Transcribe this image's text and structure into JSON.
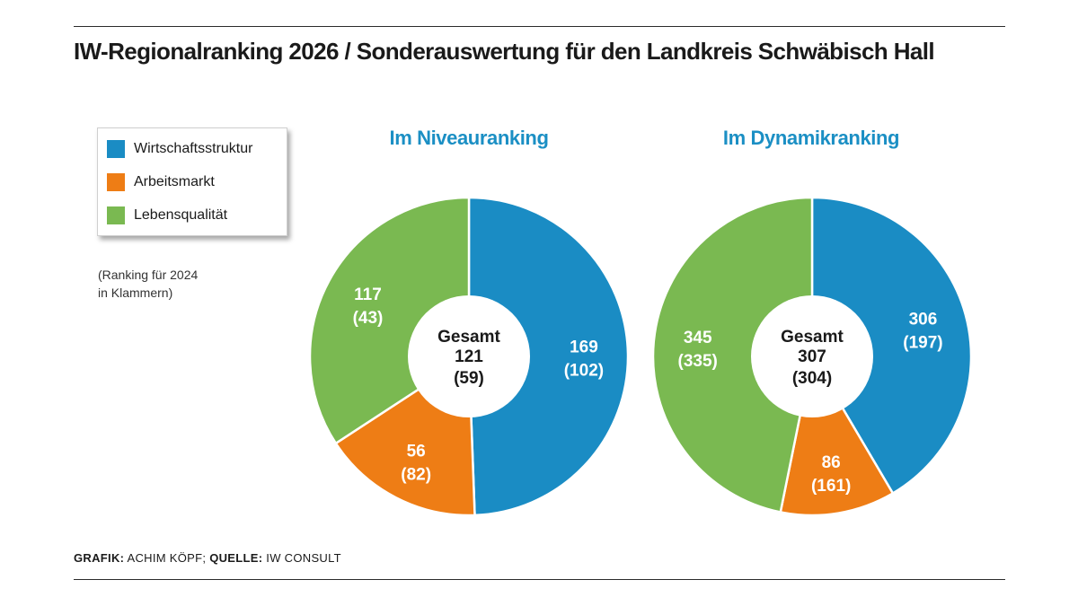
{
  "title": "IW-Regionalranking 2026 / Sonderauswertung für den Landkreis Schwäbisch Hall",
  "legend": [
    {
      "label": "Wirtschaftsstruktur",
      "color": "#1a8cc4"
    },
    {
      "label": "Arbeitsmarkt",
      "color": "#ee7d15"
    },
    {
      "label": "Lebensqualität",
      "color": "#7ab951"
    }
  ],
  "note": "(Ranking für 2024\nin Klammern)",
  "chart_data": [
    {
      "type": "pie",
      "title": "Im Niveauranking",
      "center": {
        "label": "Gesamt",
        "value": "121",
        "prev": "(59)"
      },
      "categories": [
        "Wirtschaftsstruktur",
        "Arbeitsmarkt",
        "Lebensqualität"
      ],
      "values": [
        169,
        56,
        117
      ],
      "values_2024": [
        "(102)",
        "(82)",
        "(43)"
      ],
      "colors": [
        "#1a8cc4",
        "#ee7d15",
        "#7ab951"
      ]
    },
    {
      "type": "pie",
      "title": "Im Dynamikranking",
      "center": {
        "label": "Gesamt",
        "value": "307",
        "prev": "(304)"
      },
      "categories": [
        "Wirtschaftsstruktur",
        "Arbeitsmarkt",
        "Lebensqualität"
      ],
      "values": [
        306,
        86,
        345
      ],
      "values_2024": [
        "(197)",
        "(161)",
        "(335)"
      ],
      "colors": [
        "#1a8cc4",
        "#ee7d15",
        "#7ab951"
      ]
    }
  ],
  "credit": {
    "grafik_label": "GRAFIK:",
    "grafik_value": "ACHIM KÖPF;",
    "quelle_label": "QUELLE:",
    "quelle_value": "IW CONSULT"
  }
}
